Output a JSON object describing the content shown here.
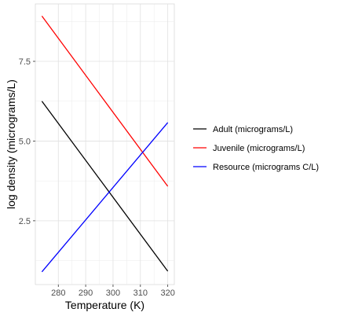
{
  "chart_data": {
    "type": "line",
    "title": "",
    "xlabel": "Temperature (K)",
    "ylabel": "log density (micrograms/L)",
    "xlim": [
      271.6,
      322.4
    ],
    "ylim": [
      0.5,
      9.3
    ],
    "x_ticks": [
      280,
      290,
      300,
      310,
      320
    ],
    "y_ticks": [
      2.5,
      5.0,
      7.5
    ],
    "x_tick_labels": [
      "280",
      "290",
      "300",
      "310",
      "320"
    ],
    "y_tick_labels": [
      "2.5",
      "5.0",
      "7.5"
    ],
    "grid": true,
    "legend_position": "right",
    "x": [
      274,
      320
    ],
    "series": [
      {
        "name": "Adult (micrograms/L)",
        "color": "#000000",
        "values": [
          6.25,
          0.92
        ]
      },
      {
        "name": "Juvenile (micrograms/L)",
        "color": "#ff0000",
        "values": [
          8.92,
          3.58
        ]
      },
      {
        "name": "Resource (micrograms C/L)",
        "color": "#0000ff",
        "values": [
          0.9,
          5.58
        ]
      }
    ]
  }
}
